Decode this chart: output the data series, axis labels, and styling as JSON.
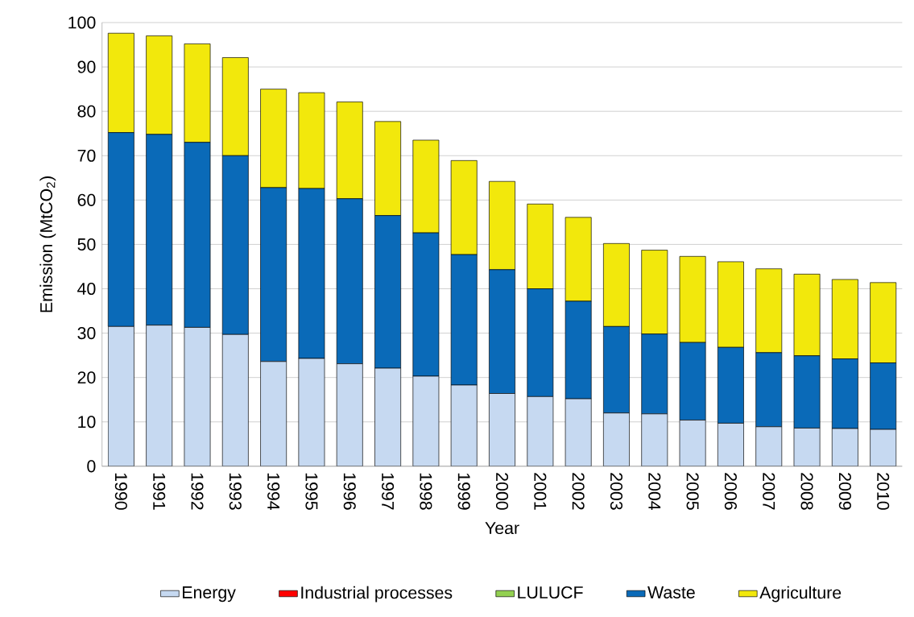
{
  "chart_data": {
    "type": "bar",
    "stacked": true,
    "xlabel": "Year",
    "ylabel": "Emission (MtCO$_{2}$)",
    "categories": [
      "1990",
      "1991",
      "1992",
      "1993",
      "1994",
      "1995",
      "1996",
      "1997",
      "1998",
      "1999",
      "2000",
      "2001",
      "2002",
      "2003",
      "2004",
      "2005",
      "2006",
      "2007",
      "2008",
      "2009",
      "2010"
    ],
    "series": [
      {
        "name": "Energy",
        "color": "#c6d9f1",
        "values": [
          31.5,
          31.8,
          31.3,
          29.7,
          23.6,
          24.3,
          23.1,
          22.1,
          20.3,
          18.3,
          16.4,
          15.7,
          15.2,
          12.0,
          11.8,
          10.4,
          9.7,
          8.9,
          8.6,
          8.5,
          8.3
        ]
      },
      {
        "name": "Industrial processes",
        "color": "#ff0000",
        "values": [
          0,
          0,
          0,
          0,
          0,
          0,
          0,
          0,
          0,
          0,
          0,
          0,
          0,
          0,
          0,
          0,
          0,
          0,
          0,
          0,
          0
        ]
      },
      {
        "name": "LULUCF",
        "color": "#92d050",
        "values": [
          0,
          0,
          0,
          0,
          0,
          0,
          0,
          0,
          0,
          0,
          0,
          0,
          0,
          0,
          0,
          0,
          0,
          0,
          0,
          0,
          0
        ]
      },
      {
        "name": "Waste",
        "color": "#0a6ab8",
        "values": [
          43.7,
          43.0,
          41.7,
          40.3,
          39.2,
          38.3,
          37.2,
          34.4,
          32.3,
          29.4,
          27.9,
          24.3,
          22.0,
          19.5,
          18.0,
          17.5,
          17.1,
          16.7,
          16.3,
          15.7,
          15.0
        ]
      },
      {
        "name": "Agriculture",
        "color": "#f2e80c",
        "values": [
          22.4,
          22.2,
          22.2,
          22.1,
          22.2,
          21.6,
          21.8,
          21.2,
          20.9,
          21.2,
          19.9,
          19.1,
          18.9,
          18.7,
          18.9,
          19.4,
          19.3,
          18.9,
          18.4,
          17.9,
          18.1
        ]
      }
    ],
    "ylim": [
      0,
      100
    ],
    "yticks": [
      0,
      10,
      20,
      30,
      40,
      50,
      60,
      70,
      80,
      90,
      100
    ],
    "grid": "y",
    "legend": "bottom"
  }
}
